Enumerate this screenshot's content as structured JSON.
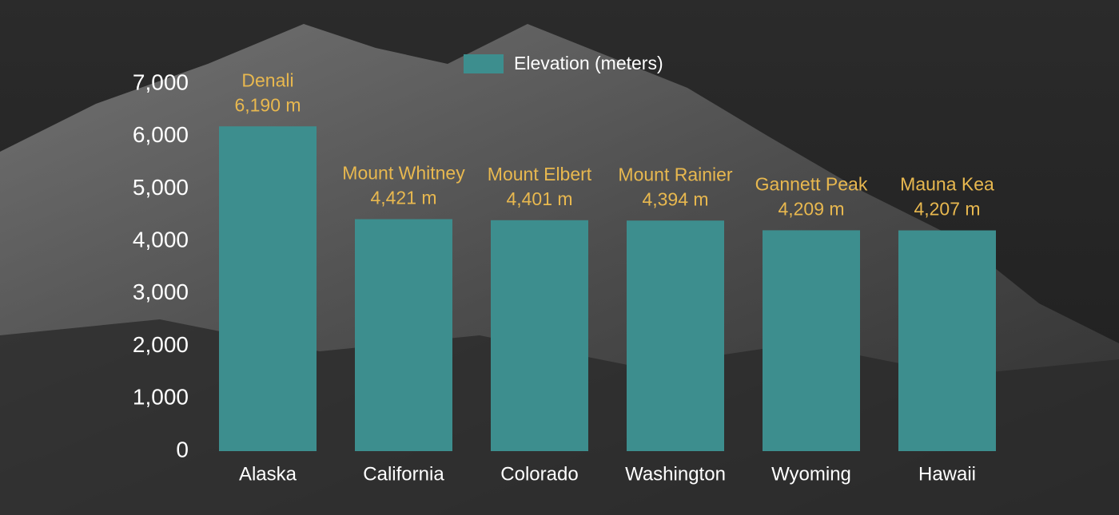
{
  "chart_data": {
    "type": "bar",
    "categories": [
      "Alaska",
      "California",
      "Colorado",
      "Washington",
      "Wyoming",
      "Hawaii"
    ],
    "peaks": [
      "Denali",
      "Mount Whitney",
      "Mount Elbert",
      "Mount Rainier",
      "Gannett Peak",
      "Mauna Kea"
    ],
    "series": [
      {
        "name": "Elevation (meters)",
        "color": "#3d8e8e",
        "values": [
          6190,
          4421,
          4401,
          4394,
          4209,
          4207
        ],
        "value_labels": [
          "6,190 m",
          "4,421 m",
          "4,401 m",
          "4,394 m",
          "4,209 m",
          "4,207 m"
        ]
      }
    ],
    "ylim": [
      0,
      7000
    ],
    "yticks": [
      0,
      {
        "value": 1000,
        "label": "1,000"
      },
      {
        "value": 2000,
        "label": "2,000"
      },
      {
        "value": 3000,
        "label": "3,000"
      },
      {
        "value": 4000,
        "label": "4,000"
      },
      {
        "value": 5000,
        "label": "5,000"
      },
      {
        "value": 6000,
        "label": "6,000"
      },
      {
        "value": 7000,
        "label": "7,000"
      }
    ],
    "grid": false,
    "legend": "top"
  }
}
